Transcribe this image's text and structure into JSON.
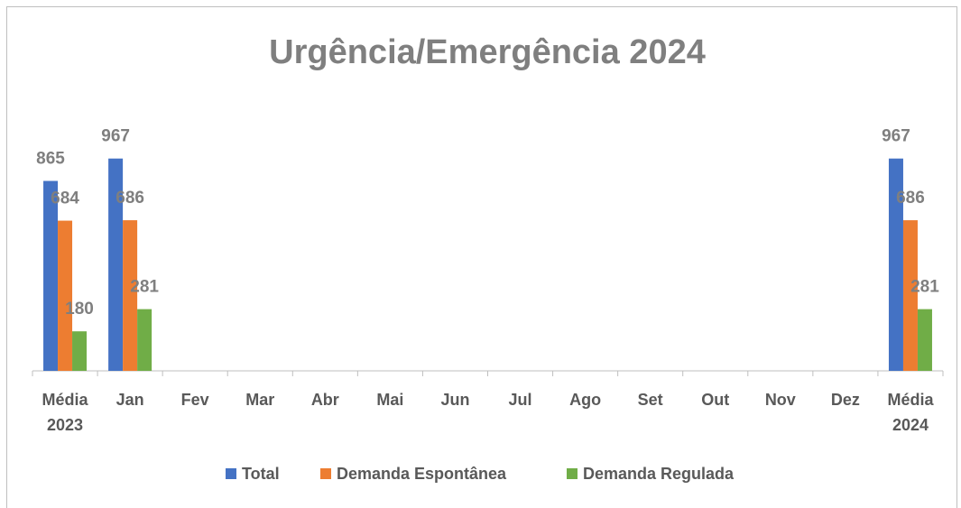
{
  "chart_data": {
    "type": "bar",
    "title": "Urgência/Emergência 2024",
    "categories": [
      "Média 2023",
      "Jan",
      "Fev",
      "Mar",
      "Abr",
      "Mai",
      "Jun",
      "Jul",
      "Ago",
      "Set",
      "Out",
      "Nov",
      "Dez",
      "Média 2024"
    ],
    "series": [
      {
        "name": "Total",
        "color": "#4472c4",
        "values": [
          865,
          967,
          null,
          null,
          null,
          null,
          null,
          null,
          null,
          null,
          null,
          null,
          null,
          967
        ]
      },
      {
        "name": "Demanda Espontânea",
        "color": "#ed7d31",
        "values": [
          684,
          686,
          null,
          null,
          null,
          null,
          null,
          null,
          null,
          null,
          null,
          null,
          null,
          686
        ]
      },
      {
        "name": "Demanda Regulada",
        "color": "#70ad47",
        "values": [
          180,
          281,
          null,
          null,
          null,
          null,
          null,
          null,
          null,
          null,
          null,
          null,
          null,
          281
        ]
      }
    ],
    "ylim": [
      0,
      1200
    ],
    "legend": "bottom"
  }
}
